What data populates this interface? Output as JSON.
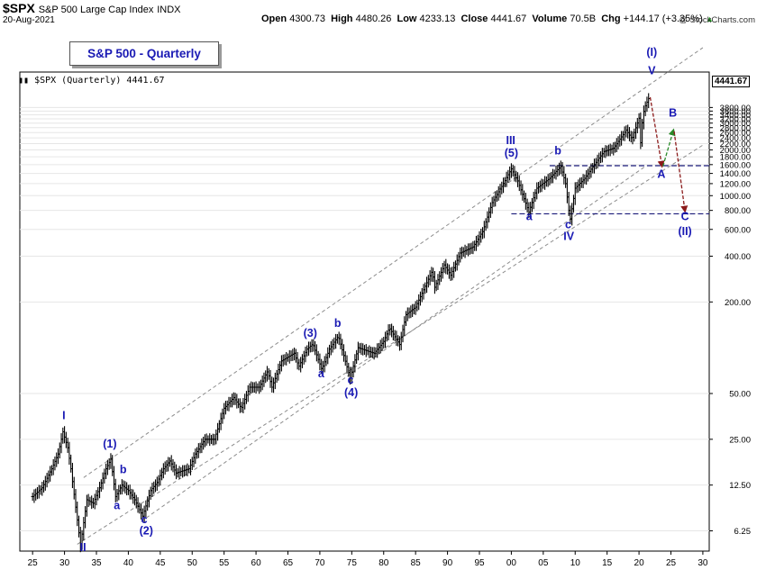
{
  "header": {
    "symbol": "$SPX",
    "name": "S&P 500 Large Cap Index",
    "exchange": "INDX",
    "date": "20-Aug-2021",
    "open_label": "Open",
    "open": "4300.73",
    "high_label": "High",
    "high": "4480.26",
    "low_label": "Low",
    "low": "4233.13",
    "close_label": "Close",
    "close": "4441.67",
    "volume_label": "Volume",
    "volume": "70.5B",
    "chg_label": "Chg",
    "chg": "+144.17 (+3.35%)",
    "chg_icon": "triangle-up-icon",
    "credit": "@ StockCharts.com"
  },
  "chart_data": {
    "type": "bar",
    "title": "S&P 500 - Quarterly",
    "legend": "$SPX (Quarterly) 4441.67",
    "last_price": "4441.67",
    "y_scale": "log",
    "xlim": [
      1923,
      2031
    ],
    "ylim": [
      4.6,
      6500
    ],
    "x_ticks": [
      "25",
      "30",
      "35",
      "40",
      "45",
      "50",
      "55",
      "60",
      "65",
      "70",
      "75",
      "80",
      "85",
      "90",
      "95",
      "00",
      "05",
      "10",
      "15",
      "20",
      "25",
      "30"
    ],
    "y_ticks": [
      "6.25",
      "12.50",
      "25.00",
      "50.00",
      "200.00",
      "400.00",
      "600.00",
      "800.00",
      "1000.00",
      "1200.00",
      "1400.00",
      "1600.00",
      "1800.00",
      "2000.00",
      "2200.00",
      "2400.00",
      "2600.00",
      "2800.00",
      "3000.00",
      "3200.00",
      "3400.00",
      "3600.00",
      "3800.00"
    ],
    "y_tick_values": [
      6.25,
      12.5,
      25,
      50,
      200,
      400,
      600,
      800,
      1000,
      1200,
      1400,
      1600,
      1800,
      2000,
      2200,
      2400,
      2600,
      2800,
      3000,
      3200,
      3400,
      3600,
      3800
    ],
    "price_anchors": [
      [
        1925.0,
        10.5
      ],
      [
        1926.5,
        12
      ],
      [
        1928.0,
        16
      ],
      [
        1929.0,
        20
      ],
      [
        1929.75,
        28
      ],
      [
        1930.5,
        22
      ],
      [
        1931.0,
        16
      ],
      [
        1932.5,
        5.0
      ],
      [
        1933.5,
        10
      ],
      [
        1934.5,
        9.5
      ],
      [
        1935.5,
        12
      ],
      [
        1936.5,
        16
      ],
      [
        1937.25,
        18.5
      ],
      [
        1938.0,
        10.5
      ],
      [
        1939.0,
        12.5
      ],
      [
        1940.0,
        11.5
      ],
      [
        1941.0,
        10
      ],
      [
        1942.25,
        7.8
      ],
      [
        1943.5,
        11.5
      ],
      [
        1944.5,
        13
      ],
      [
        1945.5,
        16
      ],
      [
        1946.5,
        18
      ],
      [
        1947.5,
        15
      ],
      [
        1948.5,
        15.5
      ],
      [
        1949.5,
        16
      ],
      [
        1950.5,
        20
      ],
      [
        1952.0,
        25
      ],
      [
        1953.5,
        25
      ],
      [
        1955.0,
        40
      ],
      [
        1956.5,
        47
      ],
      [
        1957.7,
        40
      ],
      [
        1959.0,
        55
      ],
      [
        1960.5,
        55
      ],
      [
        1961.8,
        70
      ],
      [
        1962.5,
        55
      ],
      [
        1964.0,
        82
      ],
      [
        1966.0,
        92
      ],
      [
        1966.7,
        75
      ],
      [
        1968.0,
        98
      ],
      [
        1968.9,
        106
      ],
      [
        1970.3,
        72
      ],
      [
        1971.5,
        98
      ],
      [
        1972.9,
        119
      ],
      [
        1974.75,
        63
      ],
      [
        1976.0,
        100
      ],
      [
        1977.5,
        95
      ],
      [
        1978.5,
        92
      ],
      [
        1980.0,
        110
      ],
      [
        1980.9,
        135
      ],
      [
        1982.5,
        105
      ],
      [
        1983.5,
        165
      ],
      [
        1985.0,
        185
      ],
      [
        1987.6,
        320
      ],
      [
        1988.0,
        250
      ],
      [
        1989.5,
        350
      ],
      [
        1990.5,
        300
      ],
      [
        1992.0,
        420
      ],
      [
        1994.0,
        460
      ],
      [
        1995.5,
        580
      ],
      [
        1997.0,
        900
      ],
      [
        1998.5,
        1150
      ],
      [
        2000.0,
        1500
      ],
      [
        2001.0,
        1250
      ],
      [
        2002.75,
        780
      ],
      [
        2004.0,
        1120
      ],
      [
        2006.0,
        1300
      ],
      [
        2007.75,
        1560
      ],
      [
        2008.5,
        1200
      ],
      [
        2009.2,
        680
      ],
      [
        2010.0,
        1120
      ],
      [
        2011.5,
        1300
      ],
      [
        2013.0,
        1600
      ],
      [
        2014.5,
        1950
      ],
      [
        2016.0,
        2050
      ],
      [
        2018.0,
        2700
      ],
      [
        2018.9,
        2350
      ],
      [
        2020.0,
        3230
      ],
      [
        2020.25,
        2230
      ],
      [
        2020.6,
        3400
      ],
      [
        2021.0,
        3900
      ],
      [
        2021.6,
        4441.67
      ]
    ],
    "channel_lines": [
      {
        "name": "upper-channel",
        "points": [
          [
            1933.0,
            14
          ],
          [
            2030.0,
            9400
          ]
        ]
      },
      {
        "name": "middle-channel",
        "points": [
          [
            1932.0,
            5.1
          ],
          [
            2030.0,
            2150
          ]
        ]
      },
      {
        "name": "lower-channel",
        "points": [
          [
            1942.0,
            7.2
          ],
          [
            2021.0,
            1560
          ]
        ]
      }
    ],
    "levels": [
      {
        "name": "level-1575",
        "value": 1575,
        "from": 2006.0
      },
      {
        "name": "level-760",
        "value": 760,
        "from": 2000.0
      }
    ],
    "projection_arrows": [
      {
        "name": "arrow-v-to-a",
        "from": [
          2021.75,
          4441.67
        ],
        "to": [
          2023.6,
          1560
        ],
        "color": "#8b1a1a"
      },
      {
        "name": "arrow-a-to-b",
        "from": [
          2023.75,
          1560
        ],
        "to": [
          2025.4,
          2700
        ],
        "color": "#2a8a2a"
      },
      {
        "name": "arrow-b-to-c",
        "from": [
          2025.5,
          2650
        ],
        "to": [
          2027.2,
          790
        ],
        "color": "#8b1a1a"
      }
    ],
    "annotations": [
      {
        "label": "I",
        "x": 1929.9,
        "y": 34,
        "color": "#1a1ab4"
      },
      {
        "label": "II",
        "x": 1932.9,
        "y": 4.6,
        "color": "#1a1ab4"
      },
      {
        "label": "(1)",
        "x": 1937.1,
        "y": 22,
        "color": "#1a1ab4"
      },
      {
        "label": "b",
        "x": 1939.2,
        "y": 15,
        "color": "#1a1ab4"
      },
      {
        "label": "a",
        "x": 1938.2,
        "y": 8.7,
        "color": "#1a1ab4"
      },
      {
        "label": "c",
        "x": 1942.5,
        "y": 7.0,
        "color": "#1a1ab4"
      },
      {
        "label": "(2)",
        "x": 1942.8,
        "y": 5.9,
        "color": "#1a1ab4"
      },
      {
        "label": "(3)",
        "x": 1968.5,
        "y": 118,
        "color": "#1a1ab4"
      },
      {
        "label": "b",
        "x": 1972.8,
        "y": 137,
        "color": "#1a1ab4"
      },
      {
        "label": "a",
        "x": 1970.2,
        "y": 64,
        "color": "#1a1ab4"
      },
      {
        "label": "c",
        "x": 1974.8,
        "y": 58,
        "color": "#1a1ab4"
      },
      {
        "label": "(4)",
        "x": 1974.9,
        "y": 48,
        "color": "#1a1ab4"
      },
      {
        "label": "III",
        "x": 1999.9,
        "y": 2180,
        "color": "#1a1ab4"
      },
      {
        "label": "(5)",
        "x": 2000.0,
        "y": 1800,
        "color": "#1a1ab4"
      },
      {
        "label": "b",
        "x": 2007.3,
        "y": 1870,
        "color": "#1a1ab4"
      },
      {
        "label": "a",
        "x": 2002.8,
        "y": 690,
        "color": "#1a1ab4"
      },
      {
        "label": "c",
        "x": 2008.9,
        "y": 610,
        "color": "#1a1ab4"
      },
      {
        "label": "IV",
        "x": 2009.0,
        "y": 510,
        "color": "#1a1ab4"
      },
      {
        "label": "(I)",
        "x": 2022.0,
        "y": 8300,
        "color": "#1a1ab4"
      },
      {
        "label": "V",
        "x": 2022.0,
        "y": 6300,
        "color": "#1a1ab4"
      },
      {
        "label": "B",
        "x": 2025.3,
        "y": 3300,
        "color": "#1a1ab4"
      },
      {
        "label": "A",
        "x": 2023.5,
        "y": 1310,
        "color": "#1a1ab4"
      },
      {
        "label": "C",
        "x": 2027.2,
        "y": 690,
        "color": "#1a1ab4"
      },
      {
        "label": "(II)",
        "x": 2027.2,
        "y": 550,
        "color": "#1a1ab4"
      }
    ]
  }
}
